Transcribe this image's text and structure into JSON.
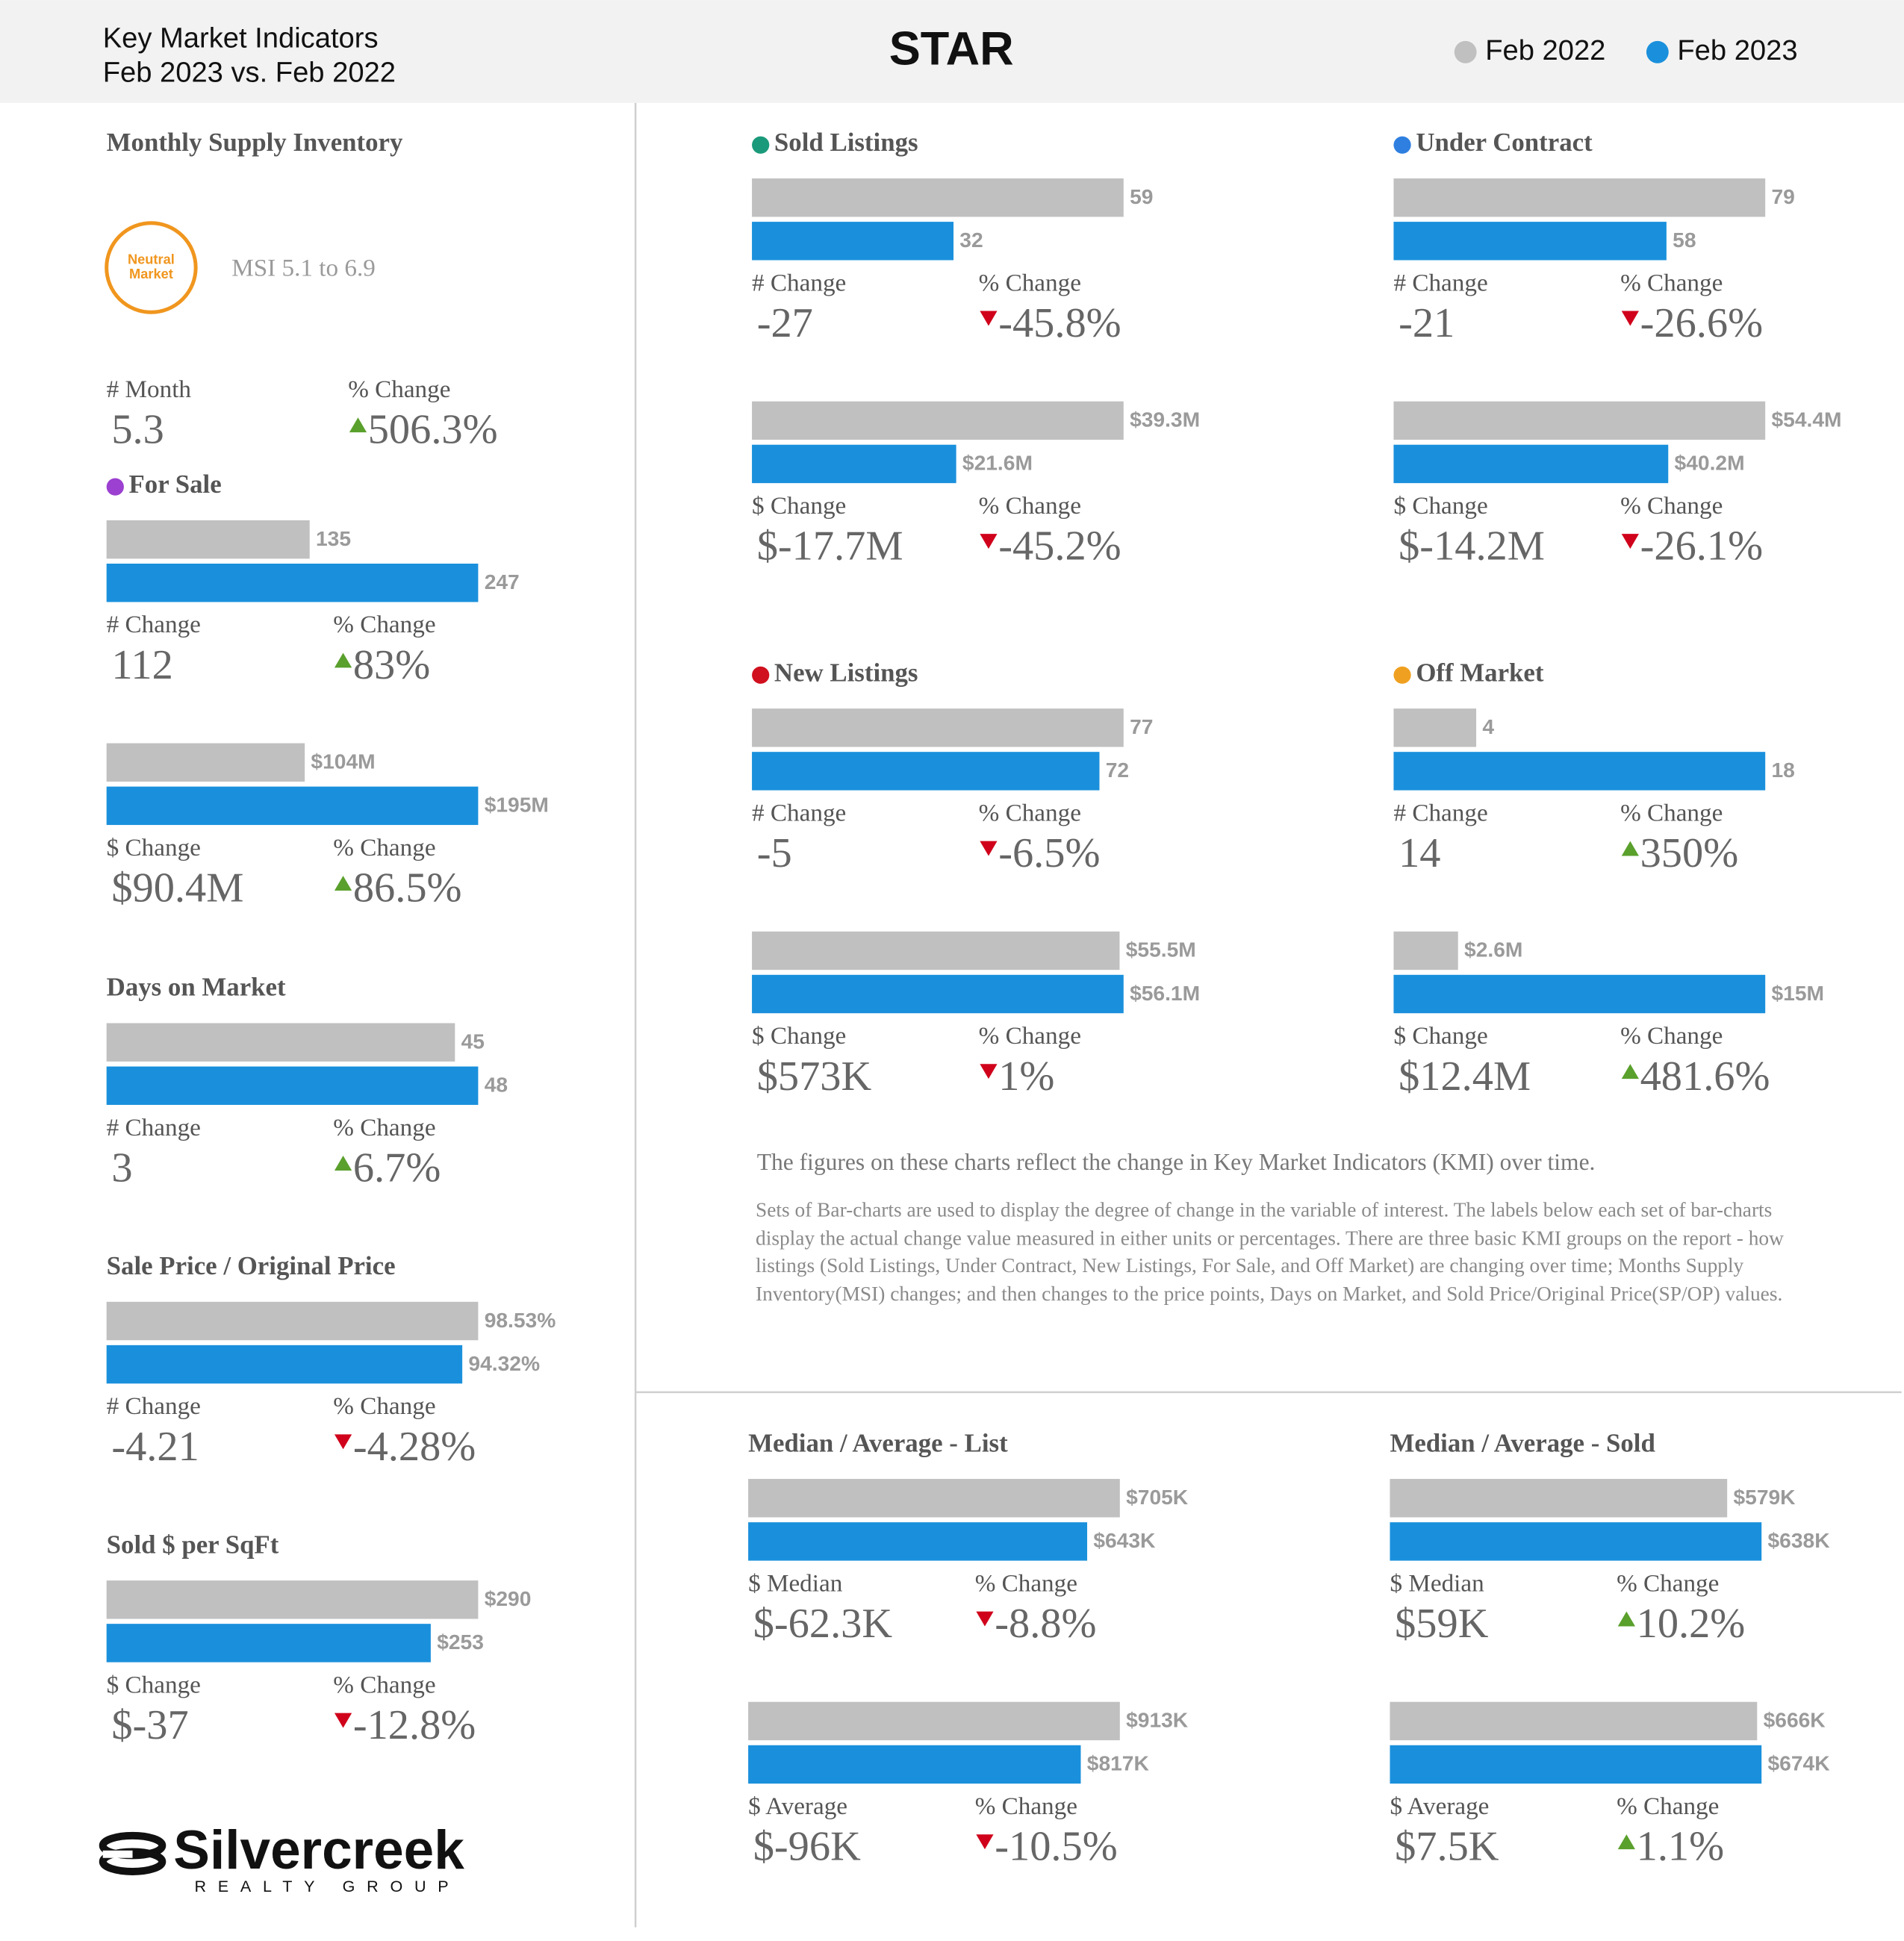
{
  "header": {
    "title_lines": [
      "Key Market Indicators",
      "Feb 2023 vs. Feb 2022"
    ],
    "name": "STAR",
    "legend": [
      {
        "name": "Feb 2022",
        "color": "#c0c0c0"
      },
      {
        "name": "Feb 2023",
        "color": "#1a90dc"
      }
    ]
  },
  "msi": {
    "title": "Monthly Supply Inventory",
    "badge": [
      "Neutral",
      "Market"
    ],
    "badge_color": "#f0961e",
    "range": "MSI 5.1 to 6.9",
    "stats": [
      {
        "label": "# Month",
        "value": "5.3"
      },
      {
        "label": "% Change",
        "value": "506.3%",
        "trend": "up"
      }
    ]
  },
  "panels": [
    {
      "title": "For Sale",
      "dot": "#9b40d0",
      "groups": [
        {
          "values": [
            135,
            247
          ],
          "stats": [
            {
              "label": "# Change",
              "value": "112"
            },
            {
              "label": "% Change",
              "value": "83%",
              "trend": "up"
            }
          ]
        },
        {
          "values": [
            104000000,
            195000000
          ],
          "value_labels": [
            "$104M",
            "$195M"
          ],
          "stats": [
            {
              "label": "$ Change",
              "value": "$90.4M"
            },
            {
              "label": "% Change",
              "value": "86.5%",
              "trend": "up"
            }
          ]
        }
      ]
    },
    {
      "title": "Days on Market",
      "groups": [
        {
          "values": [
            45,
            48
          ],
          "stats": [
            {
              "label": "# Change",
              "value": "3"
            },
            {
              "label": "% Change",
              "value": "6.7%",
              "trend": "up"
            }
          ]
        }
      ]
    },
    {
      "title": "Sale Price / Original Price",
      "groups": [
        {
          "values": [
            98.53,
            94.32
          ],
          "value_labels": [
            "98.53%",
            "94.32%"
          ],
          "stats": [
            {
              "label": "# Change",
              "value": "-4.21"
            },
            {
              "label": "% Change",
              "value": "-4.28%",
              "trend": "down"
            }
          ]
        }
      ]
    },
    {
      "title": "Sold $ per SqFt",
      "groups": [
        {
          "values": [
            290,
            253
          ],
          "value_labels": [
            "$290",
            "$253"
          ],
          "stats": [
            {
              "label": "$ Change",
              "value": "$-37"
            },
            {
              "label": "% Change",
              "value": "-12.8%",
              "trend": "down"
            }
          ]
        }
      ]
    },
    {
      "title": "Sold Listings",
      "dot": "#1a9a7a",
      "groups": [
        {
          "values": [
            59,
            32
          ],
          "stats": [
            {
              "label": "# Change",
              "value": "-27"
            },
            {
              "label": "% Change",
              "value": "-45.8%",
              "trend": "down"
            }
          ]
        },
        {
          "values": [
            39300000,
            21600000
          ],
          "value_labels": [
            "$39.3M",
            "$21.6M"
          ],
          "stats": [
            {
              "label": "$ Change",
              "value": "$-17.7M"
            },
            {
              "label": "% Change",
              "value": "-45.2%",
              "trend": "down"
            }
          ]
        }
      ]
    },
    {
      "title": "Under Contract",
      "dot": "#2f7fe0",
      "groups": [
        {
          "values": [
            79,
            58
          ],
          "stats": [
            {
              "label": "# Change",
              "value": "-21"
            },
            {
              "label": "% Change",
              "value": "-26.6%",
              "trend": "down"
            }
          ]
        },
        {
          "values": [
            54400000,
            40200000
          ],
          "value_labels": [
            "$54.4M",
            "$40.2M"
          ],
          "stats": [
            {
              "label": "$ Change",
              "value": "$-14.2M"
            },
            {
              "label": "% Change",
              "value": "-26.1%",
              "trend": "down"
            }
          ]
        }
      ]
    },
    {
      "title": "New Listings",
      "dot": "#d0101e",
      "groups": [
        {
          "values": [
            77,
            72
          ],
          "stats": [
            {
              "label": "# Change",
              "value": "-5"
            },
            {
              "label": "% Change",
              "value": "-6.5%",
              "trend": "down"
            }
          ]
        },
        {
          "values": [
            55500000,
            56100000
          ],
          "value_labels": [
            "$55.5M",
            "$56.1M"
          ],
          "stats": [
            {
              "label": "$ Change",
              "value": "$573K"
            },
            {
              "label": "% Change",
              "value": "1%",
              "trend": "down"
            }
          ]
        }
      ]
    },
    {
      "title": "Off Market",
      "dot": "#f0a020",
      "groups": [
        {
          "values": [
            4,
            18
          ],
          "stats": [
            {
              "label": "# Change",
              "value": "14"
            },
            {
              "label": "% Change",
              "value": "350%",
              "trend": "up"
            }
          ]
        },
        {
          "values": [
            2600000,
            15000000
          ],
          "value_labels": [
            "$2.6M",
            "$15M"
          ],
          "stats": [
            {
              "label": "$ Change",
              "value": "$12.4M"
            },
            {
              "label": "% Change",
              "value": "481.6%",
              "trend": "up"
            }
          ]
        }
      ]
    },
    {
      "title": "Median / Average - List",
      "groups": [
        {
          "values": [
            705000,
            643000
          ],
          "value_labels": [
            "$705K",
            "$643K"
          ],
          "stats": [
            {
              "label": "$ Median",
              "value": "$-62.3K"
            },
            {
              "label": "% Change",
              "value": "-8.8%",
              "trend": "down"
            }
          ]
        },
        {
          "values": [
            913000,
            817000
          ],
          "value_labels": [
            "$913K",
            "$817K"
          ],
          "stats": [
            {
              "label": "$ Average",
              "value": "$-96K"
            },
            {
              "label": "% Change",
              "value": "-10.5%",
              "trend": "down"
            }
          ]
        }
      ]
    },
    {
      "title": "Median / Average - Sold",
      "groups": [
        {
          "values": [
            579000,
            638000
          ],
          "value_labels": [
            "$579K",
            "$638K"
          ],
          "stats": [
            {
              "label": "$ Median",
              "value": "$59K"
            },
            {
              "label": "% Change",
              "value": "10.2%",
              "trend": "up"
            }
          ]
        },
        {
          "values": [
            666000,
            674000
          ],
          "value_labels": [
            "$666K",
            "$674K"
          ],
          "stats": [
            {
              "label": "$ Average",
              "value": "$7.5K"
            },
            {
              "label": "% Change",
              "value": "1.1%",
              "trend": "up"
            }
          ]
        }
      ]
    }
  ],
  "note": {
    "lead": "The figures on these charts reflect the change in Key Market Indicators (KMI) over time.",
    "body": "Sets of Bar-charts are used to display the degree of change in the variable of interest. The labels below each set of bar-charts display the actual change value measured in either units or percentages. There are three basic KMI groups on the report - how listings (Sold Listings, Under Contract, New Listings, For Sale, and Off Market) are changing over time; Months Supply Inventory(MSI) changes; and then changes to the price points, Days on Market, and Sold Price/Original Price(SP/OP) values."
  },
  "logo": {
    "name": "Silvercreek",
    "tagline": "REALTY GROUP"
  },
  "trend_colors": {
    "up": "#5aa02c",
    "down": "#d0021b"
  }
}
